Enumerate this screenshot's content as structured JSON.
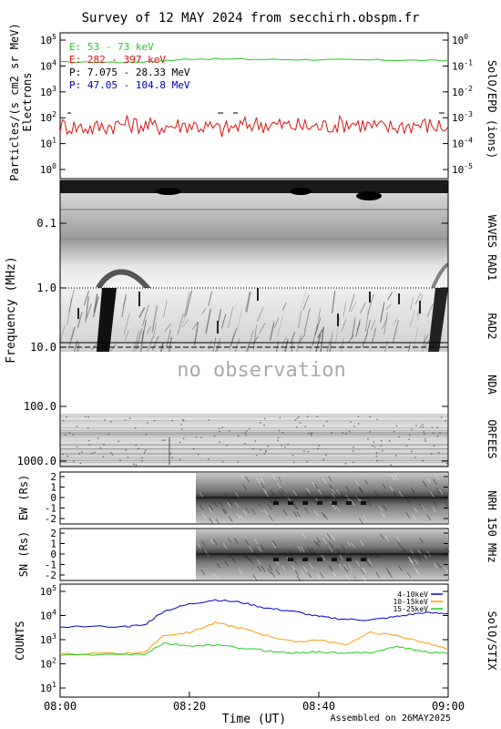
{
  "title": "Survey of 12 MAY 2024 from secchirh.obspm.fr",
  "footer": {
    "xlabel": "Time (UT)",
    "assembled": "Assembled on 26MAY2025",
    "xticks": [
      "08:00",
      "08:20",
      "08:40",
      "09:00"
    ]
  },
  "epd": {
    "ylabel_main": "Particles/(s cm2 sr MeV)",
    "ylabel_sub": "Electrons",
    "right_label": "SolO/EPD (ions)",
    "yticks_left": [
      "10^5",
      "10^4",
      "10^3",
      "10^2",
      "10^1",
      "10^0"
    ],
    "yticks_right": [
      "10^0",
      "10^-1",
      "10^-2",
      "10^-3",
      "10^-4",
      "10^-5"
    ],
    "legend": [
      {
        "text": "E: 53 - 73 keV",
        "color": "#22cc22"
      },
      {
        "text": "E: 282 - 397 keV",
        "color": "#dd1111"
      },
      {
        "text": "P: 7.075 - 28.33 MeV",
        "color": "#000000"
      },
      {
        "text": "P: 47.05 - 104.8 MeV",
        "color": "#0000bb"
      }
    ]
  },
  "radio": {
    "ylabel": "Frequency (MHz)",
    "yticks": [
      "0.1",
      "1.0",
      "10.0",
      "100.0",
      "1000.0"
    ],
    "no_obs": "no observation",
    "labels": {
      "waves": "WAVES RAD1",
      "rad2": "RAD2",
      "nda": "NDA",
      "orfees": "ORFEES"
    }
  },
  "nrh": {
    "ew_label": "EW (Rs)",
    "sn_label": "SN (Rs)",
    "right_label": "NRH 150 MHz",
    "yticks": [
      "2",
      "1",
      "0",
      "-1",
      "-2"
    ]
  },
  "stix": {
    "ylabel": "COUNTS",
    "right_label": "SolO/STIX",
    "yticks": [
      "10^5",
      "10^4",
      "10^3",
      "10^2",
      "10^1"
    ],
    "legend": [
      {
        "text": "4-10keV",
        "color": "#0000cc"
      },
      {
        "text": "10-15keV",
        "color": "#ff9900"
      },
      {
        "text": "15-25keV",
        "color": "#22cc22"
      }
    ]
  },
  "chart_data": [
    {
      "type": "line",
      "panel": "SolO/EPD",
      "x_range": [
        "08:00",
        "09:00"
      ],
      "yscale": "log",
      "ylim": [
        1,
        100000
      ],
      "series": [
        {
          "name": "E: 53 - 73 keV",
          "x": [
            "08:00",
            "08:10",
            "08:15",
            "08:20",
            "08:30",
            "08:40",
            "08:50",
            "09:00"
          ],
          "values": [
            14000,
            14000,
            15000,
            19000,
            18000,
            17500,
            17000,
            16000
          ]
        },
        {
          "name": "E: 282 - 397 keV",
          "x": [
            "08:00",
            "08:05",
            "08:10",
            "08:15",
            "08:20",
            "08:25",
            "08:30",
            "08:35",
            "08:40",
            "08:45",
            "08:50",
            "08:55",
            "09:00"
          ],
          "values": [
            50,
            40,
            60,
            45,
            55,
            35,
            60,
            50,
            45,
            65,
            40,
            55,
            45
          ]
        }
      ]
    },
    {
      "type": "line",
      "panel": "SolO/STIX",
      "x_range": [
        "08:00",
        "09:00"
      ],
      "yscale": "log",
      "ylim": [
        10,
        100000
      ],
      "series": [
        {
          "name": "4-10keV",
          "x": [
            "08:00",
            "08:10",
            "08:13",
            "08:16",
            "08:20",
            "08:24",
            "08:28",
            "08:32",
            "08:36",
            "08:40",
            "08:44",
            "08:48",
            "08:52",
            "08:56",
            "09:00"
          ],
          "values": [
            3500,
            3500,
            4000,
            15000,
            30000,
            45000,
            35000,
            20000,
            15000,
            9000,
            7000,
            6500,
            9000,
            13000,
            12000
          ]
        },
        {
          "name": "10-15keV",
          "x": [
            "08:00",
            "08:10",
            "08:13",
            "08:16",
            "08:20",
            "08:24",
            "08:28",
            "08:32",
            "08:36",
            "08:40",
            "08:44",
            "08:48",
            "08:52",
            "08:56",
            "09:00"
          ],
          "values": [
            250,
            270,
            300,
            1500,
            2000,
            5000,
            3000,
            1500,
            800,
            1000,
            600,
            2000,
            1500,
            800,
            400
          ]
        },
        {
          "name": "15-25keV",
          "x": [
            "08:00",
            "08:10",
            "08:13",
            "08:16",
            "08:20",
            "08:24",
            "08:28",
            "08:32",
            "08:36",
            "08:40",
            "08:44",
            "08:48",
            "08:52",
            "08:56",
            "09:00"
          ],
          "values": [
            230,
            240,
            250,
            700,
            550,
            600,
            450,
            350,
            280,
            320,
            270,
            300,
            520,
            330,
            260
          ]
        }
      ]
    }
  ]
}
